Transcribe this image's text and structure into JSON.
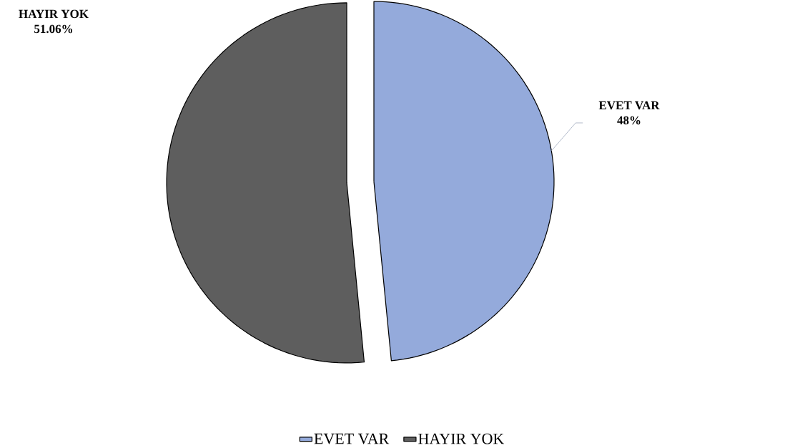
{
  "chart_data": {
    "type": "pie",
    "categories": [
      "EVET VAR",
      "HAYIR YOK"
    ],
    "values": [
      48,
      51.06
    ],
    "colors": [
      "#94aadb",
      "#5e5e5e"
    ],
    "value_labels": [
      "48%",
      "51.06%"
    ],
    "legend": "bottom"
  }
}
